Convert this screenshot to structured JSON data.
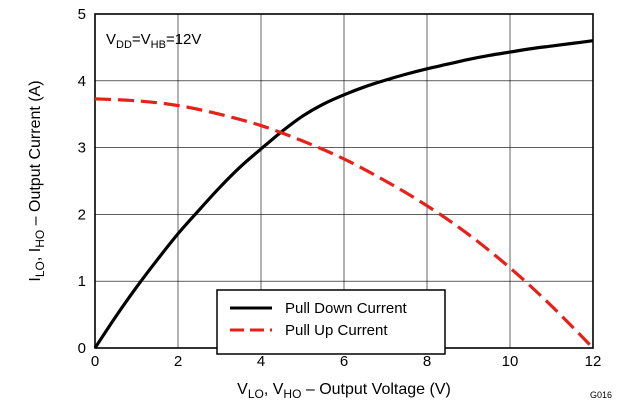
{
  "chart_data": {
    "type": "line",
    "title": "",
    "xlabel": {
      "base": "V",
      "sub1": "LO",
      "mid": ", V",
      "sub2": "HO",
      "tail": " – Output Voltage (V)"
    },
    "ylabel": {
      "base": "I",
      "sub1": "LO",
      "mid": ", I",
      "sub2": "HO",
      "tail": " – Output Current (A)"
    },
    "xlim": [
      0,
      12
    ],
    "ylim": [
      0,
      5
    ],
    "xticks": [
      0,
      2,
      4,
      6,
      8,
      10,
      12
    ],
    "yticks": [
      0,
      1,
      2,
      3,
      4,
      5
    ],
    "xtick_labels": [
      "0",
      "2",
      "4",
      "6",
      "8",
      "10",
      "12"
    ],
    "ytick_labels": [
      "0",
      "1",
      "2",
      "3",
      "4",
      "5"
    ],
    "grid": true,
    "annotation": {
      "v1": "V",
      "s1": "DD",
      "mid": "=V",
      "s2": "HB",
      "tail": "=12V"
    },
    "figure_id": "G016",
    "legend_position": "bottom-center",
    "series": [
      {
        "name": "Pull Down Current",
        "color": "#000000",
        "dash": "solid",
        "x": [
          0,
          0.5,
          1,
          1.5,
          2,
          2.5,
          3,
          3.5,
          4,
          4.5,
          5,
          5.5,
          6,
          6.5,
          7,
          7.5,
          8,
          8.5,
          9,
          9.5,
          10,
          10.5,
          11,
          11.5,
          12
        ],
        "y": [
          0,
          0.47,
          0.91,
          1.32,
          1.71,
          2.06,
          2.4,
          2.71,
          2.98,
          3.24,
          3.47,
          3.65,
          3.79,
          3.91,
          4.01,
          4.1,
          4.18,
          4.25,
          4.32,
          4.38,
          4.43,
          4.48,
          4.52,
          4.56,
          4.6
        ]
      },
      {
        "name": "Pull Up Current",
        "color": "#e8201a",
        "dash": "dashed",
        "x": [
          0,
          1,
          2,
          3,
          4,
          5,
          6,
          7,
          8,
          9,
          10,
          11,
          12
        ],
        "y": [
          3.73,
          3.7,
          3.63,
          3.5,
          3.33,
          3.1,
          2.83,
          2.5,
          2.13,
          1.7,
          1.2,
          0.63,
          0
        ]
      }
    ]
  }
}
